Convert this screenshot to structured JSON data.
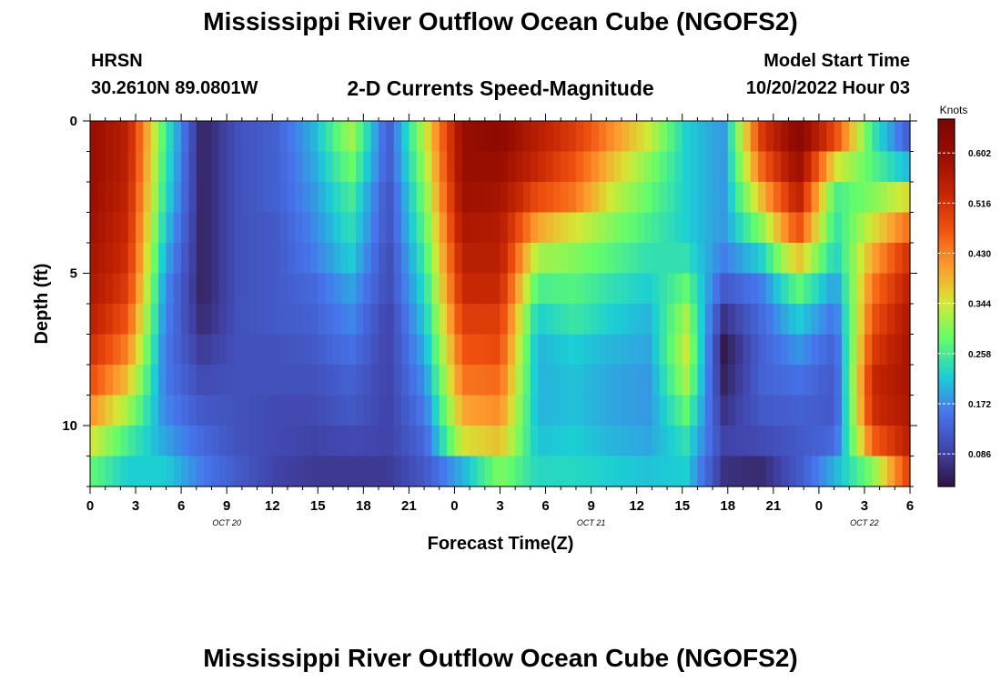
{
  "title": "Mississippi River Outflow Ocean Cube (NGOFS2)",
  "station": {
    "name": "HRSN",
    "coords": "30.2610N  89.0801W"
  },
  "subtitle": "2-D Currents Speed-Magnitude",
  "model": {
    "label": "Model Start Time",
    "value": "10/20/2022 Hour 03"
  },
  "repeat_title": "Mississippi River Outflow Ocean Cube (NGOFS2)",
  "chart_data": {
    "type": "heatmap",
    "xlabel": "Forecast Time(Z)",
    "ylabel": "Depth (ft)",
    "x_ticks": [
      "0",
      "3",
      "6",
      "9",
      "12",
      "15",
      "18",
      "21",
      "0",
      "3",
      "6",
      "9",
      "12",
      "15",
      "18",
      "21",
      "0",
      "3",
      "6"
    ],
    "date_labels": [
      "OCT 20",
      "OCT 21",
      "OCT 22"
    ],
    "y_ticks": [
      "0",
      "5",
      "10"
    ],
    "ylim": [
      0,
      12
    ],
    "hours_total": 54,
    "colorbar": {
      "unit": "Knots",
      "ticks": [
        "0.602",
        "0.516",
        "0.430",
        "0.344",
        "0.258",
        "0.172",
        "0.086"
      ],
      "range": [
        0.03,
        0.66
      ]
    },
    "rows": 12,
    "depth_rows_ft": [
      0.5,
      1.5,
      2.5,
      3.5,
      4.5,
      5.5,
      6.5,
      7.5,
      8.5,
      9.5,
      10.5,
      11.5
    ],
    "series_note": "",
    "profiles": [
      [
        0.6,
        0.6,
        0.6,
        0.59,
        0.58,
        0.57,
        0.55,
        0.52,
        0.48,
        0.42,
        0.35,
        0.28
      ],
      [
        0.55,
        0.55,
        0.54,
        0.53,
        0.52,
        0.5,
        0.47,
        0.43,
        0.38,
        0.32,
        0.26,
        0.22
      ],
      [
        0.26,
        0.25,
        0.24,
        0.22,
        0.2,
        0.18,
        0.17,
        0.16,
        0.16,
        0.17,
        0.19,
        0.22
      ],
      [
        0.05,
        0.05,
        0.05,
        0.05,
        0.05,
        0.05,
        0.06,
        0.08,
        0.1,
        0.12,
        0.14,
        0.16
      ],
      [
        0.11,
        0.11,
        0.11,
        0.11,
        0.11,
        0.11,
        0.11,
        0.11,
        0.11,
        0.11,
        0.11,
        0.12
      ],
      [
        0.13,
        0.13,
        0.13,
        0.12,
        0.12,
        0.12,
        0.12,
        0.11,
        0.11,
        0.1,
        0.1,
        0.09
      ],
      [
        0.2,
        0.19,
        0.18,
        0.17,
        0.16,
        0.14,
        0.13,
        0.12,
        0.11,
        0.1,
        0.09,
        0.08
      ],
      [
        0.32,
        0.29,
        0.26,
        0.24,
        0.22,
        0.19,
        0.17,
        0.15,
        0.13,
        0.12,
        0.1,
        0.08
      ],
      [
        0.12,
        0.12,
        0.11,
        0.11,
        0.1,
        0.1,
        0.09,
        0.09,
        0.09,
        0.09,
        0.09,
        0.08
      ],
      [
        0.34,
        0.32,
        0.3,
        0.28,
        0.26,
        0.24,
        0.22,
        0.2,
        0.18,
        0.16,
        0.14,
        0.12
      ],
      [
        0.6,
        0.6,
        0.59,
        0.57,
        0.55,
        0.53,
        0.5,
        0.47,
        0.44,
        0.4,
        0.35,
        0.2
      ],
      [
        0.62,
        0.6,
        0.58,
        0.56,
        0.55,
        0.53,
        0.5,
        0.48,
        0.45,
        0.42,
        0.38,
        0.3
      ],
      [
        0.55,
        0.53,
        0.48,
        0.4,
        0.32,
        0.26,
        0.22,
        0.2,
        0.2,
        0.2,
        0.21,
        0.23
      ],
      [
        0.5,
        0.47,
        0.44,
        0.35,
        0.3,
        0.27,
        0.25,
        0.22,
        0.21,
        0.21,
        0.22,
        0.23
      ],
      [
        0.42,
        0.38,
        0.34,
        0.3,
        0.27,
        0.24,
        0.22,
        0.2,
        0.19,
        0.19,
        0.2,
        0.22
      ],
      [
        0.34,
        0.3,
        0.28,
        0.26,
        0.24,
        0.22,
        0.2,
        0.19,
        0.18,
        0.18,
        0.19,
        0.21
      ],
      [
        0.22,
        0.22,
        0.22,
        0.22,
        0.24,
        0.28,
        0.32,
        0.34,
        0.32,
        0.28,
        0.24,
        0.22
      ],
      [
        0.18,
        0.18,
        0.18,
        0.18,
        0.16,
        0.12,
        0.07,
        0.04,
        0.05,
        0.07,
        0.09,
        0.07
      ],
      [
        0.5,
        0.45,
        0.38,
        0.3,
        0.22,
        0.16,
        0.14,
        0.13,
        0.13,
        0.12,
        0.1,
        0.06
      ],
      [
        0.63,
        0.6,
        0.55,
        0.48,
        0.38,
        0.28,
        0.22,
        0.18,
        0.15,
        0.13,
        0.12,
        0.12
      ],
      [
        0.48,
        0.35,
        0.26,
        0.24,
        0.22,
        0.18,
        0.15,
        0.13,
        0.12,
        0.12,
        0.14,
        0.2
      ],
      [
        0.25,
        0.27,
        0.3,
        0.35,
        0.4,
        0.44,
        0.47,
        0.5,
        0.53,
        0.52,
        0.46,
        0.3
      ],
      [
        0.12,
        0.2,
        0.36,
        0.45,
        0.52,
        0.55,
        0.57,
        0.58,
        0.58,
        0.57,
        0.55,
        0.5
      ]
    ]
  }
}
